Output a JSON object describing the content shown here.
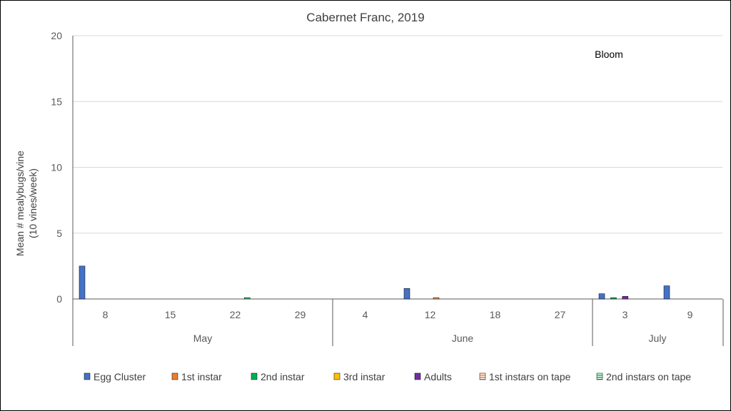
{
  "chart_data": {
    "type": "bar",
    "title": "Cabernet Franc, 2019",
    "ylabel_line1": "Mean # mealybugs/vine",
    "ylabel_line2": "(10 vines/week)",
    "ylim": [
      0,
      20
    ],
    "yticks": [
      "0",
      "5",
      "10",
      "15",
      "20"
    ],
    "grid": true,
    "legend_position": "bottom",
    "annotation": "Bloom",
    "categories": [
      "8",
      "15",
      "22",
      "29",
      "4",
      "12",
      "18",
      "27",
      "3",
      "9"
    ],
    "month_groups": [
      {
        "label": "May",
        "count": 4
      },
      {
        "label": "June",
        "count": 4
      },
      {
        "label": "July",
        "count": 2
      }
    ],
    "series": [
      {
        "name": "Egg Cluster",
        "color": "#4472C4",
        "pattern": "solid",
        "values": [
          2.5,
          0,
          0,
          0,
          0,
          0.8,
          0,
          0,
          0.4,
          1.0
        ]
      },
      {
        "name": "1st instar",
        "color": "#ED7D31",
        "pattern": "solid",
        "values": [
          0,
          0,
          0,
          0,
          0,
          0,
          0,
          0,
          0,
          0
        ]
      },
      {
        "name": "2nd instar",
        "color": "#00B050",
        "pattern": "solid",
        "values": [
          0,
          0,
          0,
          0,
          0,
          0,
          0,
          0,
          0.1,
          0
        ]
      },
      {
        "name": "3rd instar",
        "color": "#FFC000",
        "pattern": "solid",
        "values": [
          0,
          0,
          0,
          0,
          0,
          0,
          0,
          0,
          0,
          0
        ]
      },
      {
        "name": "Adults",
        "color": "#7030A0",
        "pattern": "solid",
        "values": [
          0,
          0,
          0,
          0,
          0,
          0,
          0,
          0,
          0.2,
          0
        ]
      },
      {
        "name": "1st instars on tape",
        "color": "#ED7D31",
        "pattern": "striped",
        "values": [
          0,
          0,
          0,
          0,
          0,
          0.1,
          0,
          0,
          0,
          0
        ]
      },
      {
        "name": "2nd instars on tape",
        "color": "#00B050",
        "pattern": "striped",
        "values": [
          0,
          0,
          0.1,
          0,
          0,
          0,
          0,
          0,
          0,
          0
        ]
      }
    ]
  }
}
